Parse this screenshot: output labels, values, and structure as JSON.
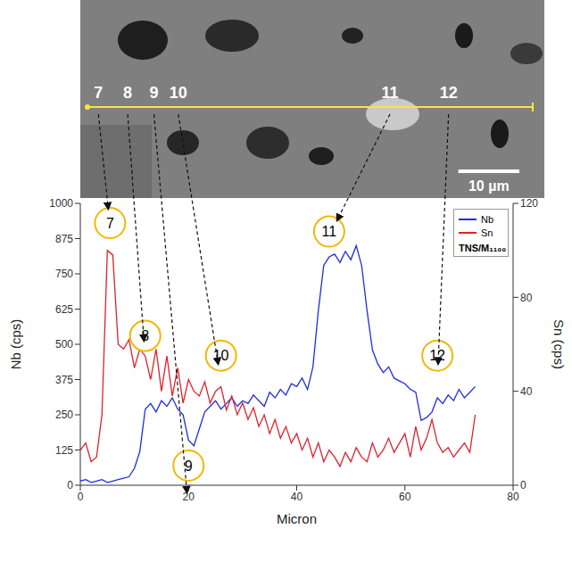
{
  "chart_data": {
    "type": "line",
    "x_label": "Micron",
    "y_label": "Nb (cps)",
    "y2_label": "Sn (cps)",
    "sample_label": "TNS/M₁₁₀₀",
    "x": [
      0,
      1,
      2,
      3,
      4,
      5,
      6,
      7,
      8,
      9,
      10,
      11,
      12,
      13,
      14,
      15,
      16,
      17,
      18,
      19,
      20,
      21,
      22,
      23,
      24,
      25,
      26,
      27,
      28,
      29,
      30,
      31,
      32,
      33,
      34,
      35,
      36,
      37,
      38,
      39,
      40,
      41,
      42,
      43,
      44,
      45,
      46,
      47,
      48,
      49,
      50,
      51,
      52,
      53,
      54,
      55,
      56,
      57,
      58,
      59,
      60,
      61,
      62,
      63,
      64,
      65,
      66,
      67,
      68,
      69,
      70,
      71,
      72,
      73
    ],
    "series": [
      {
        "name": "Nb",
        "color": "#1f2de0",
        "values": [
          15,
          20,
          10,
          15,
          20,
          10,
          15,
          20,
          25,
          30,
          60,
          120,
          270,
          290,
          260,
          300,
          280,
          310,
          270,
          250,
          160,
          140,
          200,
          260,
          280,
          300,
          270,
          290,
          310,
          280,
          300,
          290,
          320,
          300,
          280,
          330,
          310,
          340,
          320,
          360,
          350,
          380,
          340,
          420,
          620,
          780,
          810,
          820,
          790,
          830,
          800,
          850,
          780,
          620,
          480,
          430,
          400,
          420,
          380,
          370,
          360,
          340,
          330,
          230,
          240,
          260,
          310,
          290,
          320,
          300,
          340,
          310,
          330,
          350
        ]
      },
      {
        "name": "Sn",
        "color": "#e0202a",
        "axis": "y2",
        "values": [
          15,
          18,
          10,
          12,
          30,
          100,
          98,
          60,
          58,
          62,
          50,
          58,
          55,
          45,
          58,
          40,
          55,
          38,
          50,
          35,
          45,
          40,
          38,
          44,
          35,
          40,
          42,
          32,
          38,
          30,
          35,
          28,
          33,
          25,
          30,
          22,
          28,
          20,
          25,
          18,
          22,
          15,
          20,
          12,
          18,
          10,
          15,
          12,
          8,
          14,
          10,
          16,
          12,
          10,
          18,
          12,
          15,
          20,
          14,
          18,
          22,
          12,
          25,
          15,
          20,
          28,
          18,
          14,
          16,
          12,
          15,
          18,
          14,
          30
        ]
      }
    ],
    "xlim": [
      0,
      80
    ],
    "xticks": [
      0,
      20,
      40,
      60,
      80
    ],
    "ylim": [
      0,
      1000
    ],
    "yticks": [
      0,
      125,
      250,
      375,
      500,
      625,
      750,
      875,
      1000
    ],
    "y2lim": [
      0,
      120
    ],
    "y2ticks": [
      0,
      40,
      80,
      120
    ],
    "grid": false,
    "legend": "upper right",
    "annotations": [
      {
        "label": "7",
        "x": 5.5,
        "y": 930
      },
      {
        "label": "8",
        "x": 12,
        "y": 530
      },
      {
        "label": "9",
        "x": 20,
        "y": 70
      },
      {
        "label": "10",
        "x": 26,
        "y": 460
      },
      {
        "label": "11",
        "x": 46,
        "y": 900
      },
      {
        "label": "12",
        "x": 66,
        "y": 460
      }
    ]
  },
  "micrograph": {
    "labels": [
      {
        "label": "7",
        "position": 1.8
      },
      {
        "label": "8",
        "position": 6.6
      },
      {
        "label": "9",
        "position": 10.9
      },
      {
        "label": "10",
        "position": 14.9
      },
      {
        "label": "11",
        "position": 49.6
      },
      {
        "label": "12",
        "position": 59.2
      }
    ],
    "scale_bar": {
      "value": 10,
      "label": "10 µm"
    }
  }
}
